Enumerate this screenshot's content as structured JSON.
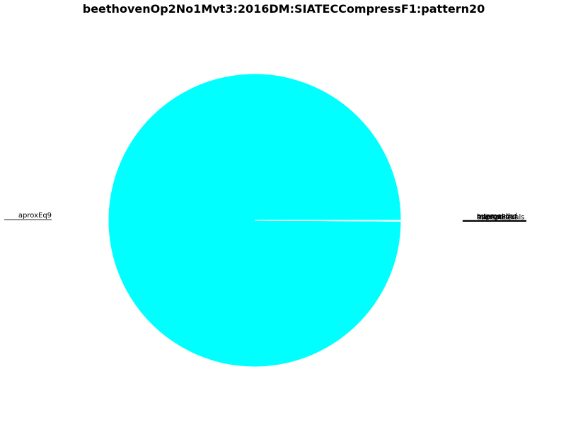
{
  "chart_data": {
    "type": "pie",
    "title": "beethovenOp2No1Mvt3:2016DM:SIATECCompressF1:pattern20",
    "slices": [
      {
        "label": "aproxEq9",
        "value": 99.9,
        "color": "#00ffff"
      },
      {
        "label": "approxEquals",
        "value": 0.02,
        "color": "#00ffff"
      },
      {
        "label": "transposed",
        "value": 0.02,
        "color": "#00ffff"
      },
      {
        "label": "interval",
        "value": 0.02,
        "color": "#00ffff"
      },
      {
        "label": "retrograde",
        "value": 0.02,
        "color": "#00ffff"
      },
      {
        "label": "augmented",
        "value": 0.02,
        "color": "#00ffff"
      }
    ],
    "legend": "none",
    "grid": false
  }
}
